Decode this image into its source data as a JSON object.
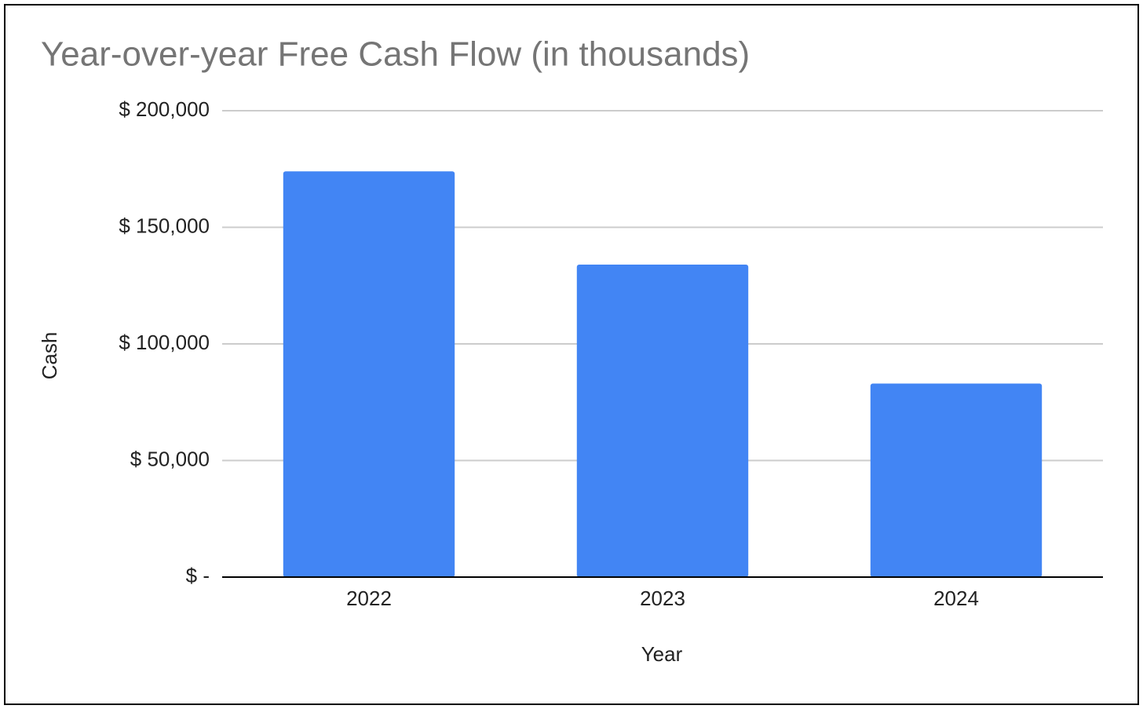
{
  "chart_data": {
    "type": "bar",
    "title": "Year-over-year Free Cash Flow (in thousands)",
    "x_label": "Year",
    "y_label": "Cash",
    "categories": [
      "2022",
      "2023",
      "2024"
    ],
    "values": [
      174000,
      134000,
      83000
    ],
    "color": "#4285f4",
    "ylim": [
      0,
      200000
    ],
    "yticks": [
      {
        "value": 0,
        "label": "$ -"
      },
      {
        "value": 50000,
        "label": "$ 50,000"
      },
      {
        "value": 100000,
        "label": "$ 100,000"
      },
      {
        "value": 150000,
        "label": "$ 150,000"
      },
      {
        "value": 200000,
        "label": "$ 200,000"
      }
    ],
    "grid": true
  }
}
